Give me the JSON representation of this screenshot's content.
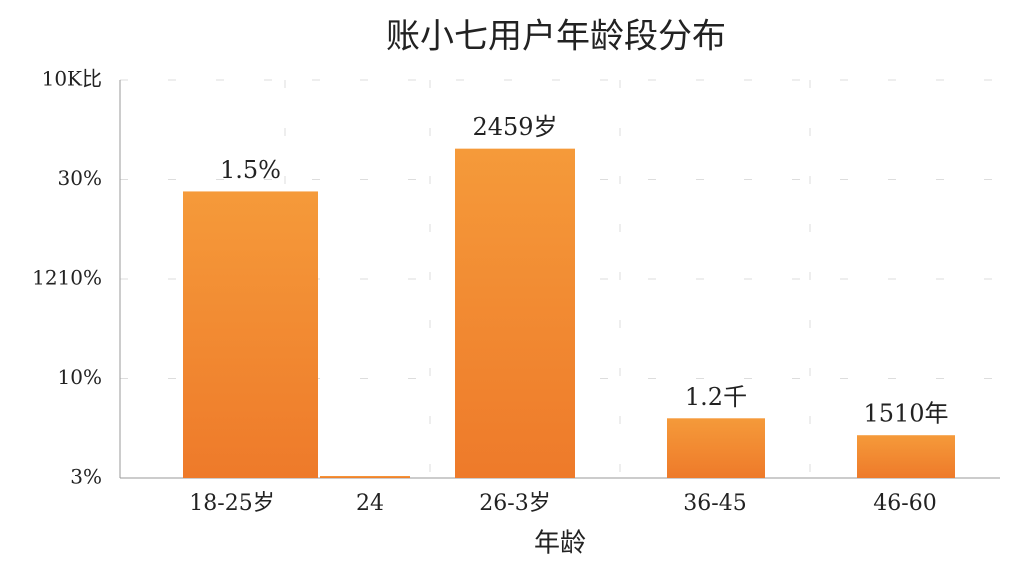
{
  "chart_data": {
    "type": "bar",
    "title": "账小七用户年龄段分布",
    "x_label": "年龄",
    "categories": [
      "18-25岁",
      "24",
      "26-3岁",
      "36-45",
      "46-60"
    ],
    "values": [
      2.88,
      0.02,
      3.31,
      0.6,
      0.43
    ],
    "value_labels": [
      "1.5%",
      null,
      "2459岁",
      "1.2千",
      "1510年"
    ],
    "color": "#f08a30",
    "ylim": [
      0,
      4
    ],
    "yticks": [
      {
        "value": 0,
        "label": "3%"
      },
      {
        "value": 1,
        "label": "10%"
      },
      {
        "value": 2,
        "label": "1210%"
      },
      {
        "value": 3,
        "label": "30%"
      },
      {
        "value": 4,
        "label": "10K比"
      }
    ],
    "grid": true
  }
}
